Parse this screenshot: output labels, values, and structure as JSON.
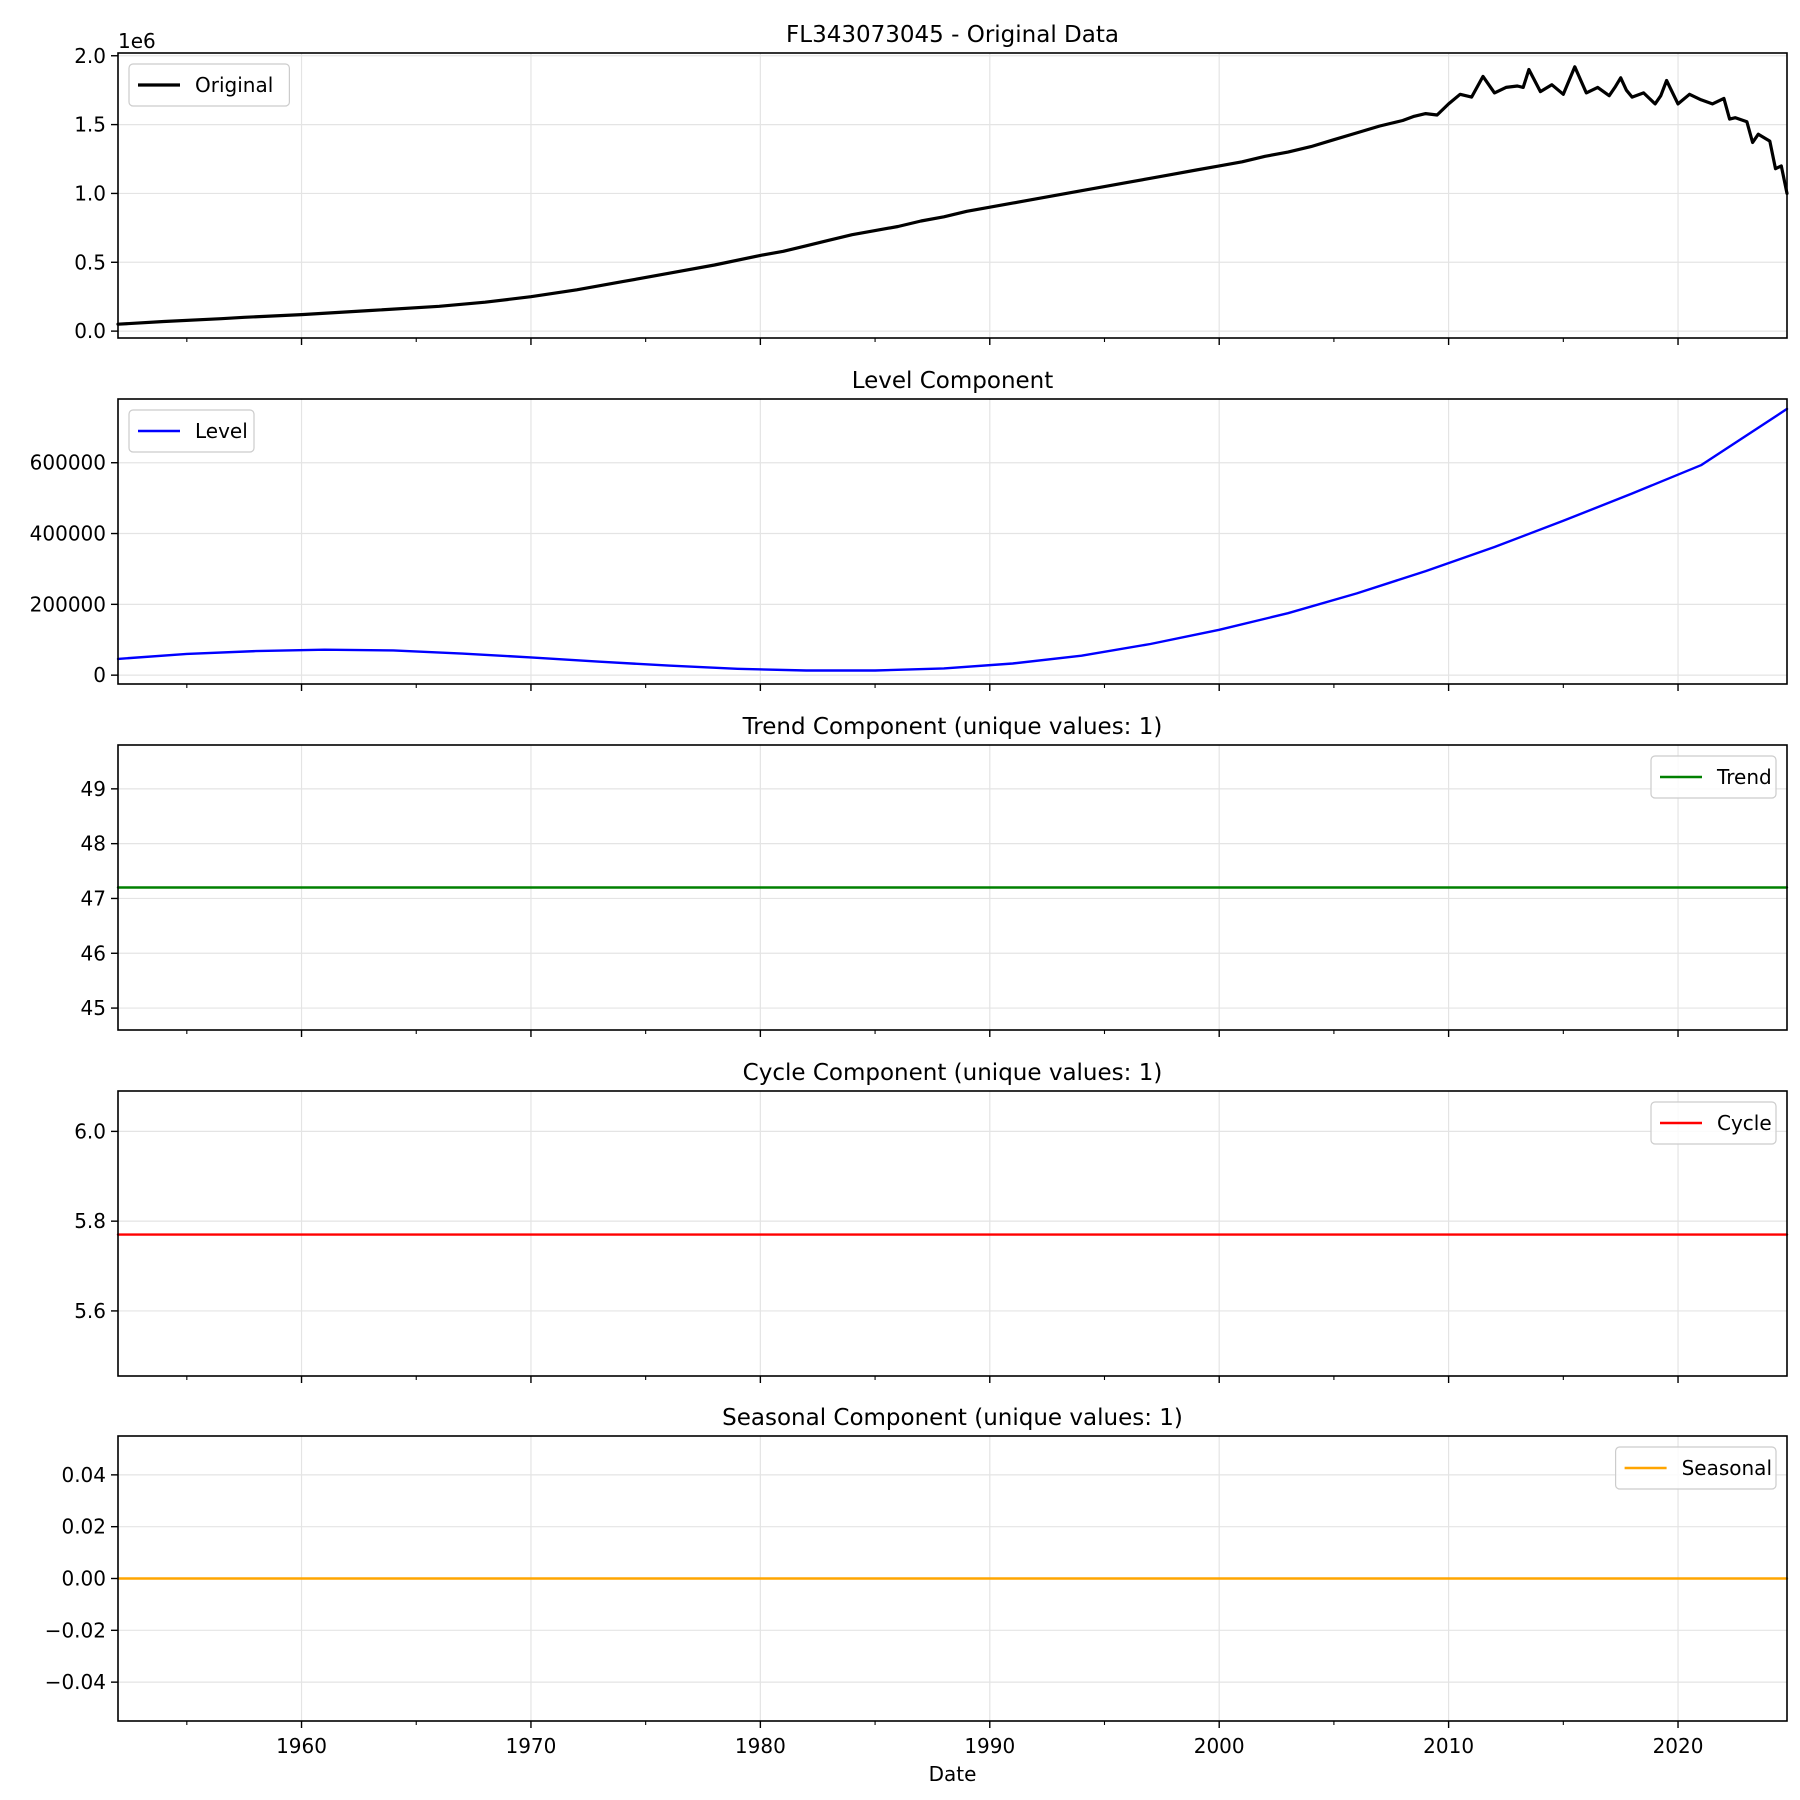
{
  "chart_data": [
    {
      "type": "line",
      "title": "FL343073045 - Original Data",
      "xlabel": "",
      "ylabel": "",
      "xlim": [
        1952.0,
        2024.75
      ],
      "ylim": [
        -0.05,
        2.02
      ],
      "y_offset_label": "1e6",
      "yticks": [
        0.0,
        0.5,
        1.0,
        1.5,
        2.0
      ],
      "ytick_labels": [
        "0.0",
        "0.5",
        "1.0",
        "1.5",
        "2.0"
      ],
      "grid": true,
      "legend_position": "upper left",
      "series": [
        {
          "name": "Original",
          "color": "#000000",
          "x": [
            1952.0,
            1954.0,
            1956.5,
            1957.5,
            1960.0,
            1963.0,
            1966.0,
            1968.0,
            1970.0,
            1972.0,
            1974.0,
            1976.0,
            1978.0,
            1980.0,
            1981.0,
            1982.0,
            1983.0,
            1984.0,
            1985.0,
            1986.0,
            1987.0,
            1988.0,
            1989.0,
            1990.0,
            1991.0,
            1992.0,
            1993.0,
            1994.0,
            1995.0,
            1996.0,
            1997.0,
            1998.0,
            1999.0,
            2000.0,
            2001.0,
            2002.0,
            2003.0,
            2004.0,
            2005.0,
            2006.0,
            2007.0,
            2008.0,
            2008.5,
            2009.0,
            2009.5,
            2010.0,
            2010.5,
            2011.0,
            2011.5,
            2012.0,
            2012.5,
            2013.0,
            2013.25,
            2013.5,
            2014.0,
            2014.5,
            2015.0,
            2015.5,
            2016.0,
            2016.5,
            2017.0,
            2017.25,
            2017.5,
            2017.75,
            2018.0,
            2018.5,
            2019.0,
            2019.25,
            2019.5,
            2020.0,
            2020.5,
            2021.0,
            2021.5,
            2022.0,
            2022.25,
            2022.5,
            2023.0,
            2023.25,
            2023.5,
            2024.0,
            2024.25,
            2024.5,
            2024.75
          ],
          "y": [
            0.05,
            0.07,
            0.09,
            0.1,
            0.12,
            0.15,
            0.18,
            0.21,
            0.25,
            0.3,
            0.36,
            0.42,
            0.48,
            0.55,
            0.58,
            0.62,
            0.66,
            0.7,
            0.73,
            0.76,
            0.8,
            0.83,
            0.87,
            0.9,
            0.93,
            0.96,
            0.99,
            1.02,
            1.05,
            1.08,
            1.11,
            1.14,
            1.17,
            1.2,
            1.23,
            1.27,
            1.3,
            1.34,
            1.39,
            1.44,
            1.49,
            1.53,
            1.56,
            1.58,
            1.57,
            1.65,
            1.72,
            1.7,
            1.85,
            1.73,
            1.77,
            1.78,
            1.77,
            1.9,
            1.74,
            1.79,
            1.72,
            1.92,
            1.73,
            1.77,
            1.71,
            1.77,
            1.84,
            1.75,
            1.7,
            1.73,
            1.65,
            1.71,
            1.82,
            1.65,
            1.72,
            1.68,
            1.65,
            1.69,
            1.54,
            1.55,
            1.52,
            1.37,
            1.43,
            1.38,
            1.18,
            1.2,
            1.0
          ]
        }
      ]
    },
    {
      "type": "line",
      "title": "Level Component",
      "xlabel": "",
      "ylabel": "",
      "xlim": [
        1952.0,
        2024.75
      ],
      "ylim": [
        -25000,
        780000
      ],
      "yticks": [
        0,
        200000,
        400000,
        600000
      ],
      "ytick_labels": [
        "0",
        "200000",
        "400000",
        "600000"
      ],
      "grid": true,
      "legend_position": "upper left",
      "series": [
        {
          "name": "Level",
          "color": "#0000ff",
          "x": [
            1952,
            1955,
            1958,
            1961,
            1964,
            1967,
            1970,
            1973,
            1976,
            1979,
            1982,
            1985,
            1988,
            1991,
            1994,
            1997,
            2000,
            2003,
            2006,
            2009,
            2012,
            2015,
            2018,
            2021,
            2024.75
          ],
          "y": [
            46000,
            60000,
            68000,
            72000,
            70000,
            61000,
            50000,
            38000,
            27000,
            18000,
            13000,
            13000,
            19000,
            33000,
            55000,
            88000,
            128000,
            175000,
            231000,
            294000,
            362000,
            436000,
            513000,
            593000,
            752000
          ]
        }
      ]
    },
    {
      "type": "line",
      "title": "Trend Component (unique values: 1)",
      "xlabel": "",
      "ylabel": "",
      "xlim": [
        1952.0,
        2024.75
      ],
      "ylim": [
        44.6,
        49.8
      ],
      "yticks": [
        45,
        46,
        47,
        48,
        49
      ],
      "ytick_labels": [
        "45",
        "46",
        "47",
        "48",
        "49"
      ],
      "grid": true,
      "legend_position": "upper right",
      "series": [
        {
          "name": "Trend",
          "color": "#008000",
          "x": [
            1952.0,
            2024.75
          ],
          "y": [
            47.2,
            47.2
          ]
        }
      ]
    },
    {
      "type": "line",
      "title": "Cycle Component (unique values: 1)",
      "xlabel": "",
      "ylabel": "",
      "xlim": [
        1952.0,
        2024.75
      ],
      "ylim": [
        5.455,
        6.09
      ],
      "yticks": [
        5.6,
        5.8,
        6.0
      ],
      "ytick_labels": [
        "5.6",
        "5.8",
        "6.0"
      ],
      "grid": true,
      "legend_position": "upper right",
      "series": [
        {
          "name": "Cycle",
          "color": "#ff0000",
          "x": [
            1952.0,
            2024.75
          ],
          "y": [
            5.77,
            5.77
          ]
        }
      ]
    },
    {
      "type": "line",
      "title": "Seasonal Component (unique values: 1)",
      "xlabel": "Date",
      "ylabel": "",
      "xlim": [
        1952.0,
        2024.75
      ],
      "ylim": [
        -0.055,
        0.055
      ],
      "yticks": [
        -0.04,
        -0.02,
        0.0,
        0.02,
        0.04
      ],
      "ytick_labels": [
        "−0.04",
        "−0.02",
        "0.00",
        "0.02",
        "0.04"
      ],
      "grid": true,
      "legend_position": "upper right",
      "series": [
        {
          "name": "Seasonal",
          "color": "#ffa500",
          "x": [
            1952.0,
            2024.75
          ],
          "y": [
            0.0,
            0.0
          ]
        }
      ]
    }
  ],
  "x_axis": {
    "major_ticks": [
      1960,
      1970,
      1980,
      1990,
      2000,
      2010,
      2020
    ],
    "major_tick_labels": [
      "1960",
      "1970",
      "1980",
      "1990",
      "2000",
      "2010",
      "2020"
    ],
    "minor_ticks": [
      1955,
      1965,
      1975,
      1985,
      1995,
      2005,
      2015
    ]
  }
}
